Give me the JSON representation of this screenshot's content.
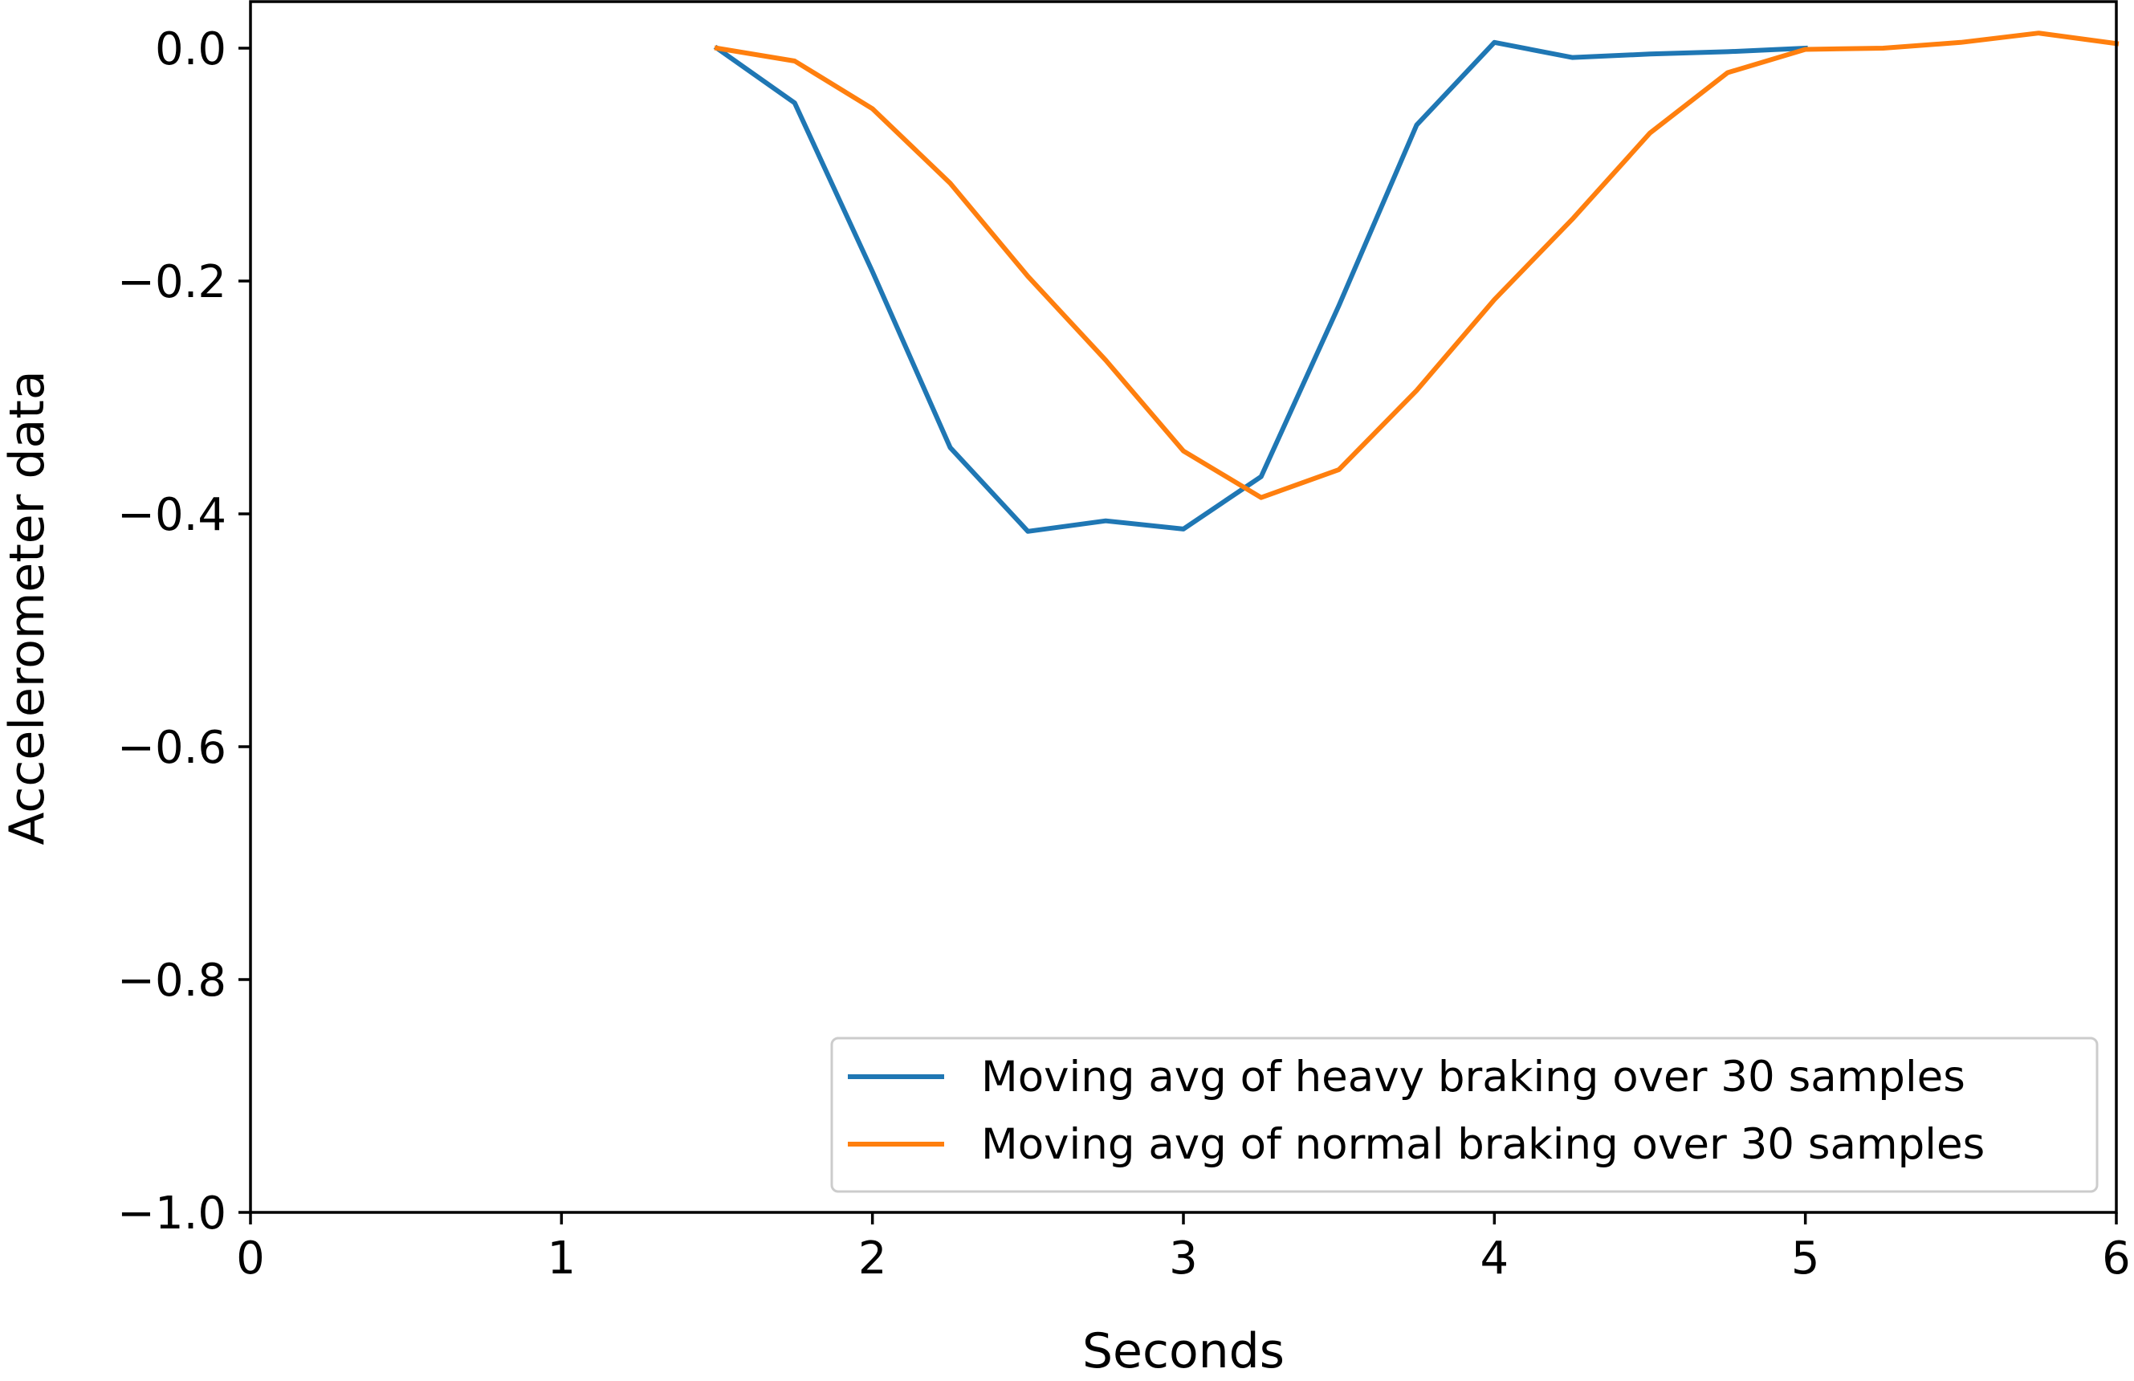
{
  "chart_data": {
    "type": "line",
    "title": "",
    "xlabel": "Seconds",
    "ylabel": "Accelerometer data",
    "xlim": [
      0,
      6
    ],
    "ylim": [
      -1.0,
      0.04
    ],
    "xticks": [
      0,
      1,
      2,
      3,
      4,
      5,
      6
    ],
    "xtick_labels": [
      "0",
      "1",
      "2",
      "3",
      "4",
      "5",
      "6"
    ],
    "yticks": [
      0.0,
      -0.2,
      -0.4,
      -0.6,
      -0.8,
      -1.0
    ],
    "ytick_labels": [
      "0.0",
      "−0.2",
      "−0.4",
      "−0.6",
      "−0.8",
      "−1.0"
    ],
    "grid": false,
    "legend_position": "lower-right",
    "series": [
      {
        "name": "Moving avg of heavy braking over 30 samples",
        "color": "#1f77b4",
        "x": [
          1.5,
          1.75,
          2.0,
          2.25,
          2.5,
          2.75,
          3.0,
          3.25,
          3.5,
          3.75,
          4.0,
          4.25,
          4.5,
          4.75,
          5.0
        ],
        "y": [
          0.0,
          -0.047,
          -0.192,
          -0.343,
          -0.415,
          -0.406,
          -0.413,
          -0.368,
          -0.221,
          -0.066,
          0.005,
          -0.008,
          -0.005,
          -0.003,
          0.0
        ]
      },
      {
        "name": "Moving avg of normal braking over 30 samples",
        "color": "#ff7f0e",
        "x": [
          1.5,
          1.75,
          2.0,
          2.25,
          2.5,
          2.75,
          3.0,
          3.25,
          3.5,
          3.75,
          4.0,
          4.25,
          4.5,
          4.75,
          5.0,
          5.25,
          5.5,
          5.75,
          6.0
        ],
        "y": [
          0.0,
          -0.011,
          -0.052,
          -0.116,
          -0.196,
          -0.268,
          -0.346,
          -0.386,
          -0.362,
          -0.294,
          -0.216,
          -0.147,
          -0.073,
          -0.021,
          -0.001,
          0.0,
          0.005,
          0.013,
          0.004
        ]
      }
    ]
  }
}
